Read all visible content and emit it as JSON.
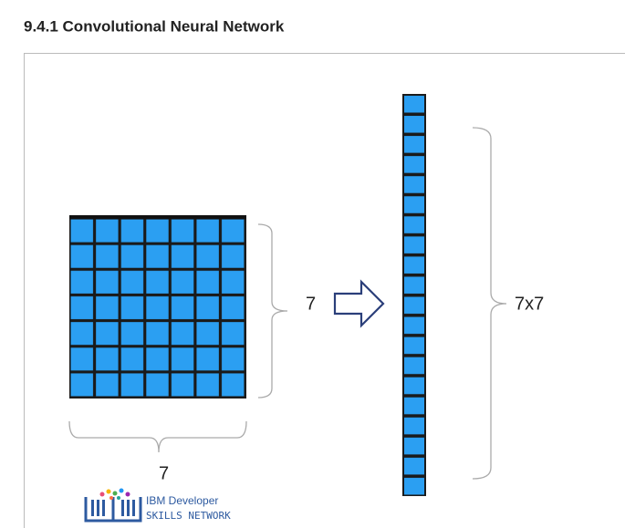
{
  "header": {
    "title": "9.4.1 Convolutional Neural Network"
  },
  "figure": {
    "grid_height_label": "7",
    "grid_width_label": "7",
    "flattened_label": "7x7"
  },
  "logo": {
    "line1": "IBM Developer",
    "line2": "SKILLS NETWORK"
  }
}
